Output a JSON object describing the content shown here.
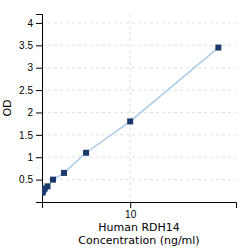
{
  "chart_data": {
    "type": "line",
    "x": [
      0.078,
      0.156,
      0.312,
      0.625,
      1.25,
      2.5,
      5,
      10,
      20
    ],
    "series": [
      {
        "type": "line",
        "color": "#aacce8",
        "values": [
          0.21,
          0.26,
          0.3,
          0.35,
          0.5,
          0.65,
          1.1,
          1.8,
          3.45
        ]
      },
      {
        "type": "scatter",
        "color": "#1a3a6b",
        "marker": "square",
        "values": [
          0.21,
          0.26,
          0.3,
          0.35,
          0.5,
          0.65,
          1.1,
          1.8,
          3.45
        ]
      }
    ],
    "xlabel": [
      "Human RDH14",
      "Concentration (ng/ml)"
    ],
    "ylabel": "OD",
    "xlim": [
      0,
      22
    ],
    "xticks": [
      10
    ],
    "ylim": [
      0,
      4.2
    ],
    "yticks": [
      0.5,
      1,
      1.5,
      2,
      2.5,
      3,
      3.5,
      4
    ],
    "grid": true
  }
}
